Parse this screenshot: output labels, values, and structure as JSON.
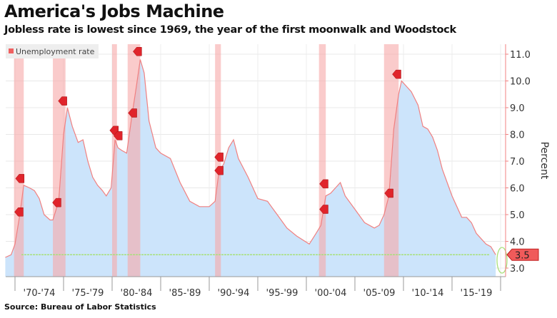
{
  "chart_data": {
    "type": "area",
    "title": "America's Jobs Machine",
    "subtitle": "Jobless rate is lowest since 1969, the year of the first moonwalk and Woodstock",
    "source": "Source: Bureau of Labor Statistics",
    "ylabel": "Percent",
    "ylim": [
      2.6,
      11.3
    ],
    "y_ticks": [
      "3.0",
      "4.0",
      "5.0",
      "6.0",
      "7.0",
      "8.0",
      "9.0",
      "10.0",
      "11.0"
    ],
    "x_tick_labels": [
      "'70-'74",
      "'75-'79",
      "'80-'84",
      "'85-'89",
      "'90-'94",
      "'95-'99",
      "'00-'04",
      "'05-'09",
      "'10-'14",
      "'15-'19"
    ],
    "xlim": [
      1969.0,
      2020.2
    ],
    "grid": true,
    "legend": {
      "label": "Unemployment rate",
      "placement": "top-left"
    },
    "colors": {
      "line": "#f08080",
      "fill": "#cce4fb",
      "recession": "#f7a8a8",
      "marker": "#e0242b",
      "reference": "#a8e07a"
    },
    "series": [
      {
        "name": "Unemployment rate",
        "x": [
          1969.0,
          1969.6,
          1970.0,
          1970.5,
          1970.9,
          1971.5,
          1972.0,
          1972.5,
          1973.0,
          1973.6,
          1973.9,
          1974.5,
          1975.0,
          1975.4,
          1975.9,
          1976.5,
          1977.0,
          1977.5,
          1978.0,
          1978.5,
          1979.0,
          1979.4,
          1979.9,
          1980.3,
          1980.6,
          1981.0,
          1981.5,
          1982.0,
          1982.5,
          1982.9,
          1983.3,
          1983.8,
          1984.5,
          1985.0,
          1986.0,
          1987.0,
          1988.0,
          1989.0,
          1990.0,
          1990.6,
          1991.0,
          1991.5,
          1992.0,
          1992.5,
          1993.0,
          1994.0,
          1995.0,
          1996.0,
          1997.0,
          1998.0,
          1999.0,
          2000.3,
          2001.0,
          2001.5,
          2002.0,
          2002.5,
          2003.0,
          2003.5,
          2004.0,
          2005.0,
          2006.0,
          2007.0,
          2007.5,
          2008.0,
          2008.5,
          2009.0,
          2009.5,
          2009.8,
          2010.3,
          2010.8,
          2011.5,
          2012.0,
          2012.5,
          2013.0,
          2013.5,
          2014.0,
          2014.5,
          2015.0,
          2015.5,
          2016.0,
          2016.5,
          2017.0,
          2017.5,
          2018.0,
          2018.5,
          2019.0,
          2019.5
        ],
        "values": [
          3.4,
          3.5,
          3.9,
          5.0,
          6.1,
          6.0,
          5.9,
          5.6,
          5.0,
          4.8,
          4.8,
          5.5,
          8.0,
          9.0,
          8.3,
          7.7,
          7.8,
          7.0,
          6.4,
          6.1,
          5.9,
          5.7,
          6.0,
          7.8,
          7.5,
          7.4,
          7.3,
          8.6,
          9.8,
          10.8,
          10.3,
          8.5,
          7.5,
          7.3,
          7.1,
          6.2,
          5.5,
          5.3,
          5.3,
          5.5,
          6.6,
          6.9,
          7.5,
          7.8,
          7.1,
          6.4,
          5.6,
          5.5,
          5.0,
          4.5,
          4.2,
          3.9,
          4.3,
          4.6,
          5.7,
          5.8,
          6.0,
          6.2,
          5.7,
          5.2,
          4.7,
          4.5,
          4.6,
          5.0,
          5.7,
          8.2,
          9.5,
          10.0,
          9.8,
          9.6,
          9.1,
          8.3,
          8.2,
          7.9,
          7.4,
          6.7,
          6.2,
          5.7,
          5.3,
          4.9,
          4.9,
          4.7,
          4.3,
          4.1,
          3.9,
          3.8,
          3.5
        ]
      }
    ],
    "recessions": [
      [
        1969.9,
        1970.9
      ],
      [
        1973.9,
        1975.2
      ],
      [
        1980.0,
        1980.5
      ],
      [
        1981.6,
        1982.9
      ],
      [
        1990.6,
        1991.2
      ],
      [
        2001.3,
        2002.0
      ],
      [
        2008.0,
        2009.5
      ]
    ],
    "markers": [
      [
        1970.4,
        5.1
      ],
      [
        1970.5,
        6.35
      ],
      [
        1974.3,
        5.45
      ],
      [
        1974.9,
        9.25
      ],
      [
        1980.2,
        8.15
      ],
      [
        1980.6,
        7.95
      ],
      [
        1982.1,
        8.8
      ],
      [
        1982.6,
        11.1
      ],
      [
        1991.0,
        7.15
      ],
      [
        1991.0,
        6.65
      ],
      [
        2001.8,
        6.15
      ],
      [
        2001.8,
        5.2
      ],
      [
        2008.5,
        5.8
      ],
      [
        2009.3,
        10.25
      ]
    ],
    "reference_line": 3.5,
    "last_value_label": "3.5"
  }
}
